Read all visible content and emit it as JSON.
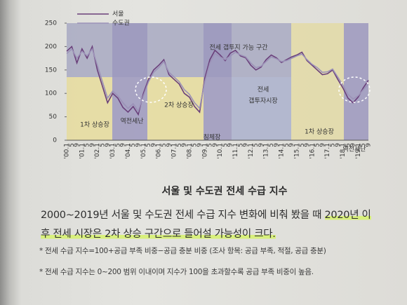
{
  "chart_data": {
    "type": "line",
    "categories": [
      "'00.1",
      "5",
      "9",
      "'01.1",
      "5",
      "9",
      "'02.1",
      "5",
      "9",
      "'03.1",
      "5",
      "9",
      "'04.1",
      "5",
      "9",
      "'05.1",
      "5",
      "9",
      "'06.1",
      "5",
      "9",
      "'07.1",
      "5",
      "9",
      "'08.1",
      "5",
      "9",
      "'09.1",
      "5",
      "9",
      "'10.1",
      "5",
      "9",
      "'11.1",
      "5",
      "9",
      "'12.1",
      "5",
      "9",
      "'13.1",
      "5",
      "9",
      "'14.1",
      "5",
      "9",
      "'15.1",
      "5",
      "9",
      "'16.1",
      "5",
      "9",
      "'17.1",
      "5",
      "9",
      "'18.1",
      "5",
      "9",
      "'19.1",
      "5",
      "9"
    ],
    "series": [
      {
        "name": "서울",
        "color": "#6a3f7a",
        "values": [
          190,
          200,
          165,
          195,
          175,
          200,
          150,
          115,
          80,
          100,
          90,
          70,
          60,
          72,
          55,
          100,
          130,
          150,
          160,
          172,
          140,
          130,
          120,
          100,
          92,
          72,
          60,
          132,
          172,
          192,
          182,
          170,
          186,
          192,
          180,
          176,
          160,
          150,
          156,
          172,
          182,
          176,
          166,
          172,
          178,
          182,
          188,
          170,
          160,
          150,
          140,
          142,
          150,
          130,
          112,
          90,
          80,
          92,
          112,
          128
        ]
      },
      {
        "name": "수도권",
        "color": "#9c92b8",
        "values": [
          185,
          195,
          175,
          190,
          180,
          195,
          160,
          125,
          90,
          105,
          95,
          80,
          68,
          78,
          62,
          95,
          125,
          145,
          155,
          168,
          145,
          135,
          125,
          108,
          98,
          80,
          68,
          125,
          165,
          185,
          178,
          172,
          180,
          188,
          182,
          178,
          165,
          155,
          158,
          168,
          178,
          174,
          168,
          170,
          175,
          180,
          184,
          172,
          162,
          155,
          145,
          146,
          152,
          135,
          118,
          98,
          88,
          95,
          108,
          120
        ]
      }
    ],
    "ylim": [
      0,
      250
    ],
    "yticks": [
      0,
      50,
      100,
      150,
      200,
      250
    ],
    "annotations": [
      "전세 갭투지 가능 구간",
      "1차 상승장",
      "역전세난",
      "2차 상승장",
      "침체장",
      "전세",
      "갭투자시장",
      "1차 상승장",
      "역전세난"
    ]
  },
  "caption": "서울 및 수도권 전세 수급 지수",
  "paragraph": [
    "2000~2019년 서울 및 수도권 전세 수급 지수 변화에 비춰 봤을 때 ",
    "2020년 이",
    "후 전세 시장은 2차 상승 구간으로 들어설 가능성이 크다."
  ],
  "notes": [
    "* 전세 수급 지수=100+공급 부족 비중−공급 충분 비중 (조사 항목: 공급 부족, 적절, 공급 충분)",
    "* 전세 수급 지수는 0~200 범위 이내이며 지수가 100을 초과할수록 공급 부족 비중이 높음."
  ]
}
